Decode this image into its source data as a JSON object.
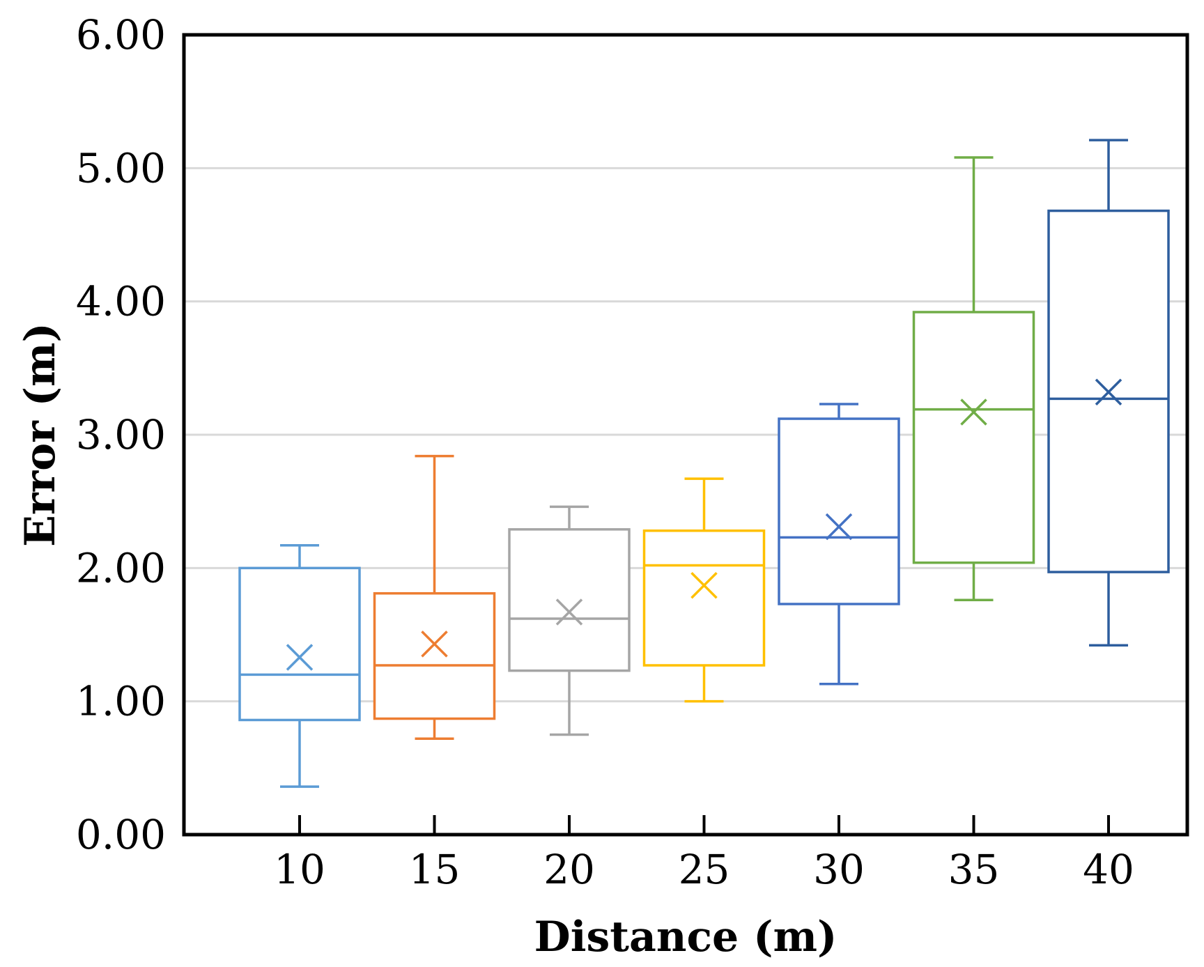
{
  "chart_data": {
    "type": "box",
    "xlabel": "Distance (m)",
    "ylabel": "Error (m)",
    "ylim": [
      0,
      6
    ],
    "ytick_labels": [
      "0.00",
      "1.00",
      "2.00",
      "3.00",
      "4.00",
      "5.00",
      "6.00"
    ],
    "grid": "horizontal",
    "categories": [
      "10",
      "15",
      "20",
      "25",
      "30",
      "35",
      "40"
    ],
    "boxes": [
      {
        "category": "10",
        "color": "#5b9bd5",
        "min": 0.36,
        "q1": 0.86,
        "median": 1.2,
        "q3": 2.0,
        "max": 2.17,
        "mean": 1.33
      },
      {
        "category": "15",
        "color": "#ed7d31",
        "min": 0.72,
        "q1": 0.87,
        "median": 1.27,
        "q3": 1.81,
        "max": 2.84,
        "mean": 1.43
      },
      {
        "category": "20",
        "color": "#a5a5a5",
        "min": 0.75,
        "q1": 1.23,
        "median": 1.62,
        "q3": 2.29,
        "max": 2.46,
        "mean": 1.67
      },
      {
        "category": "25",
        "color": "#ffc000",
        "min": 1.0,
        "q1": 1.27,
        "median": 2.02,
        "q3": 2.28,
        "max": 2.67,
        "mean": 1.87
      },
      {
        "category": "30",
        "color": "#4472c4",
        "min": 1.13,
        "q1": 1.73,
        "median": 2.23,
        "q3": 3.12,
        "max": 3.23,
        "mean": 2.31
      },
      {
        "category": "35",
        "color": "#70ad47",
        "min": 1.76,
        "q1": 2.04,
        "median": 3.19,
        "q3": 3.92,
        "max": 5.08,
        "mean": 3.17
      },
      {
        "category": "40",
        "color": "#2e5e9e",
        "min": 1.42,
        "q1": 1.97,
        "median": 3.27,
        "q3": 4.68,
        "max": 5.21,
        "mean": 3.32
      }
    ]
  }
}
